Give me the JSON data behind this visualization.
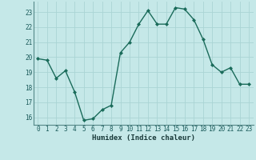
{
  "x": [
    0,
    1,
    2,
    3,
    4,
    5,
    6,
    7,
    8,
    9,
    10,
    11,
    12,
    13,
    14,
    15,
    16,
    17,
    18,
    19,
    20,
    21,
    22,
    23
  ],
  "y": [
    19.9,
    19.8,
    18.6,
    19.1,
    17.7,
    15.8,
    15.9,
    16.5,
    16.8,
    20.3,
    21.0,
    22.2,
    23.1,
    22.2,
    22.2,
    23.3,
    23.2,
    22.5,
    21.2,
    19.5,
    19.0,
    19.3,
    18.2,
    18.2
  ],
  "line_color": "#1a6b5a",
  "bg_color": "#c5e8e8",
  "grid_color": "#aad4d4",
  "xlabel": "Humidex (Indice chaleur)",
  "ylim": [
    15.5,
    23.7
  ],
  "xlim": [
    -0.5,
    23.5
  ],
  "yticks": [
    16,
    17,
    18,
    19,
    20,
    21,
    22,
    23
  ],
  "xticks": [
    0,
    1,
    2,
    3,
    4,
    5,
    6,
    7,
    8,
    9,
    10,
    11,
    12,
    13,
    14,
    15,
    16,
    17,
    18,
    19,
    20,
    21,
    22,
    23
  ],
  "xtick_labels": [
    "0",
    "1",
    "2",
    "3",
    "4",
    "5",
    "6",
    "7",
    "8",
    "9",
    "10",
    "11",
    "12",
    "13",
    "14",
    "15",
    "16",
    "17",
    "18",
    "19",
    "20",
    "21",
    "22",
    "23"
  ],
  "marker": "D",
  "marker_size": 2.0,
  "line_width": 1.0,
  "tick_fontsize": 5.5,
  "xlabel_fontsize": 6.5
}
